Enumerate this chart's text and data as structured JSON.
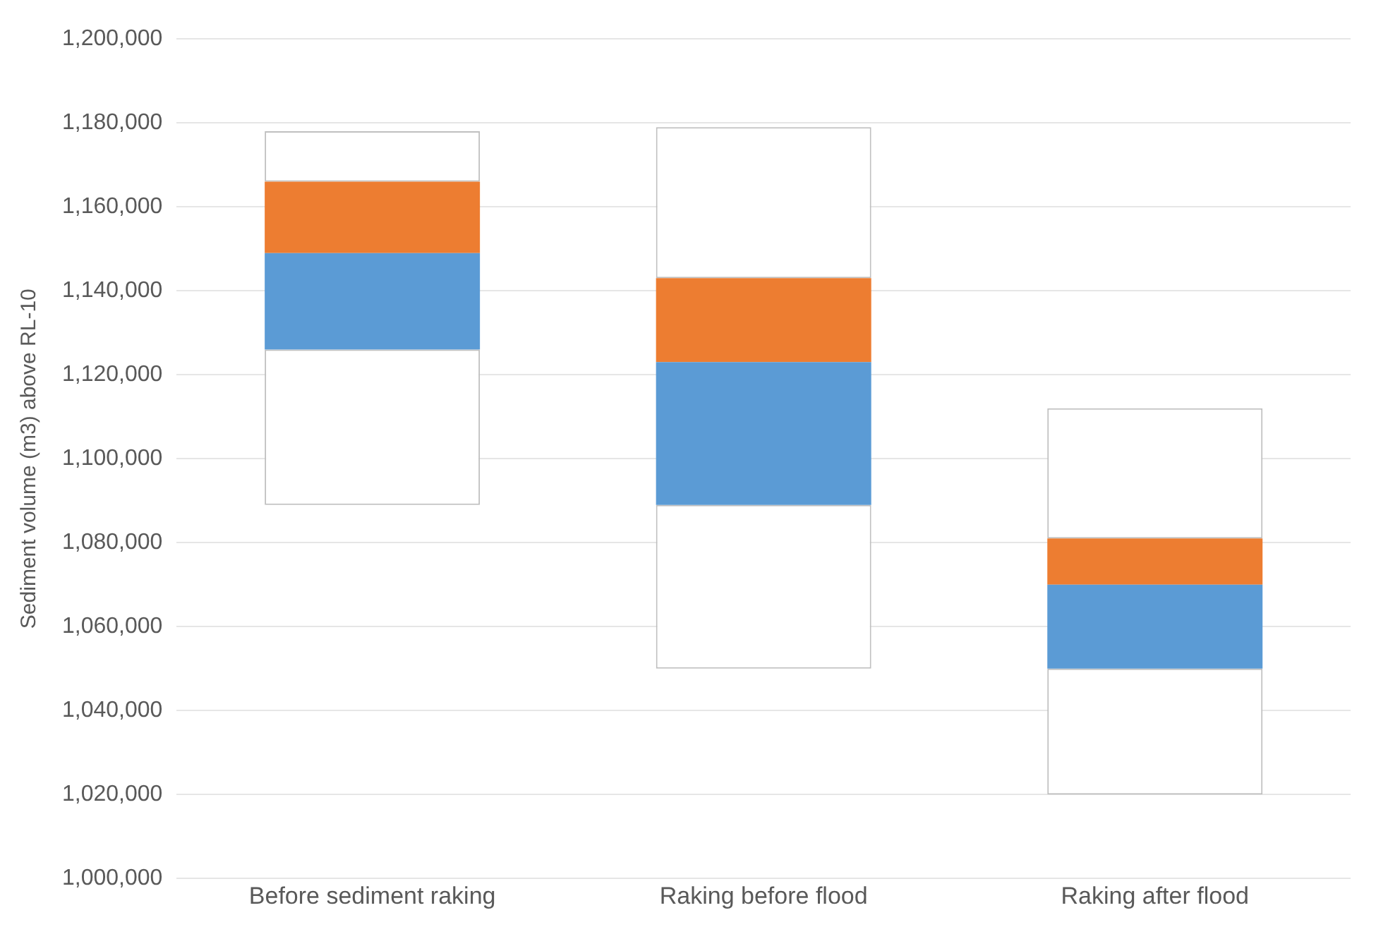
{
  "chart_data": {
    "type": "bar",
    "ylabel": "Sediment volume (m3) above RL-10",
    "categories": [
      "Before sediment raking",
      "Raking before flood",
      "Raking after flood"
    ],
    "series": [
      {
        "color": "#ffffff",
        "base": [
          1089000,
          1050000,
          1020000
        ],
        "values": [
          37000,
          39000,
          30000
        ]
      },
      {
        "color": "#5b9bd5",
        "base": [
          1126000,
          1089000,
          1050000
        ],
        "values": [
          23000,
          34000,
          20000
        ]
      },
      {
        "color": "#ed7d31",
        "base": [
          1149000,
          1123000,
          1070000
        ],
        "values": [
          17000,
          20000,
          11000
        ]
      },
      {
        "color": "#ffffff",
        "base": [
          1166000,
          1143000,
          1081000
        ],
        "values": [
          12000,
          36000,
          31000
        ]
      }
    ],
    "ylim": [
      1000000,
      1200000
    ],
    "yticks": [
      {
        "value": 1000000,
        "label": "1,000,000"
      },
      {
        "value": 1020000,
        "label": "1,020,000"
      },
      {
        "value": 1040000,
        "label": "1,040,000"
      },
      {
        "value": 1060000,
        "label": "1,060,000"
      },
      {
        "value": 1080000,
        "label": "1,080,000"
      },
      {
        "value": 1100000,
        "label": "1,100,000"
      },
      {
        "value": 1120000,
        "label": "1,120,000"
      },
      {
        "value": 1140000,
        "label": "1,140,000"
      },
      {
        "value": 1160000,
        "label": "1,160,000"
      },
      {
        "value": 1180000,
        "label": "1,180,000"
      },
      {
        "value": 1200000,
        "label": "1,200,000"
      }
    ],
    "grid": "y",
    "legend": false
  }
}
